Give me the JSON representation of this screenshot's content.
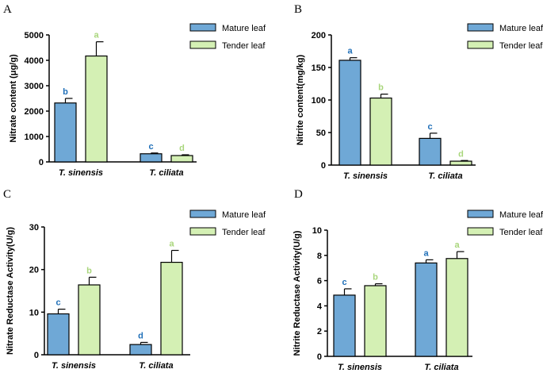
{
  "colors": {
    "mature": "#6fa8d6",
    "tender": "#d4f0b4",
    "mature_sig": "#1f6fb8",
    "tender_sig": "#a9d67c",
    "stroke": "#000000"
  },
  "chart_data": [
    {
      "type": "bar",
      "panel": "A",
      "categories": [
        "T. sinensis",
        "T. ciliata"
      ],
      "ylabel": "Nitrate content (μg/g)",
      "ylim": [
        0,
        5000
      ],
      "yticks": [
        0,
        1000,
        2000,
        3000,
        4000,
        5000
      ],
      "legend_position": "top-right",
      "series": [
        {
          "name": "Mature leaf",
          "values": [
            2320,
            320
          ],
          "errors": [
            180,
            30
          ],
          "letters": [
            "b",
            "c"
          ]
        },
        {
          "name": "Tender leaf",
          "values": [
            4170,
            250
          ],
          "errors": [
            560,
            30
          ],
          "letters": [
            "a",
            "d"
          ]
        }
      ]
    },
    {
      "type": "bar",
      "panel": "B",
      "categories": [
        "T. sinensis",
        "T. ciliata"
      ],
      "ylabel": "Nitrite content(mg/kg)",
      "ylim": [
        0,
        200
      ],
      "yticks": [
        0,
        50,
        100,
        150,
        200
      ],
      "legend_position": "top-right",
      "series": [
        {
          "name": "Mature leaf",
          "values": [
            161,
            41
          ],
          "errors": [
            4,
            8
          ],
          "letters": [
            "a",
            "c"
          ]
        },
        {
          "name": "Tender leaf",
          "values": [
            103,
            6
          ],
          "errors": [
            6,
            1
          ],
          "letters": [
            "b",
            "d"
          ]
        }
      ]
    },
    {
      "type": "bar",
      "panel": "C",
      "categories": [
        "T. sinensis",
        "T. ciliata"
      ],
      "ylabel": "Nitrate Reductase Activity(U/g)",
      "ylim": [
        0,
        30
      ],
      "yticks": [
        0,
        10,
        20,
        30
      ],
      "legend_position": "top-right",
      "series": [
        {
          "name": "Mature leaf",
          "values": [
            9.6,
            2.4
          ],
          "errors": [
            1.1,
            0.5
          ],
          "letters": [
            "c",
            "d"
          ]
        },
        {
          "name": "Tender leaf",
          "values": [
            16.4,
            21.7
          ],
          "errors": [
            1.8,
            2.8
          ],
          "letters": [
            "b",
            "a"
          ]
        }
      ]
    },
    {
      "type": "bar",
      "panel": "D",
      "categories": [
        "T. sinensis",
        "T. ciliata"
      ],
      "ylabel": "Nitrite Reductase Activity(U/g)",
      "ylim": [
        0,
        10
      ],
      "yticks": [
        0,
        2,
        4,
        6,
        8,
        10
      ],
      "legend_position": "top-right",
      "series": [
        {
          "name": "Mature leaf",
          "values": [
            4.85,
            7.4
          ],
          "errors": [
            0.5,
            0.25
          ],
          "letters": [
            "c",
            "a"
          ]
        },
        {
          "name": "Tender leaf",
          "values": [
            5.6,
            7.75
          ],
          "errors": [
            0.15,
            0.55
          ],
          "letters": [
            "b",
            "a"
          ]
        }
      ]
    }
  ]
}
